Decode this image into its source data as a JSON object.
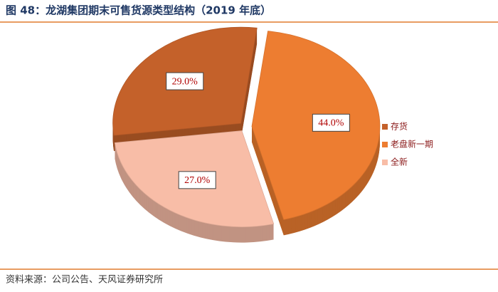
{
  "chart_data": {
    "type": "pie",
    "title": "图 48：龙湖集团期末可售货源类型结构（2019 年底）",
    "source": "资料来源：公司公告、天风证券研究所",
    "series": [
      {
        "name": "存货",
        "color": "#c4612a",
        "values": [
          29.0
        ],
        "value_labels": [
          "29.0%"
        ]
      },
      {
        "name": "老盘新一期",
        "color": "#ed7d31",
        "values": [
          44.0
        ],
        "value_labels": [
          "44.0%"
        ]
      },
      {
        "name": "全新",
        "color": "#f8bda7",
        "values": [
          27.0
        ],
        "value_labels": [
          "27.0%"
        ]
      }
    ],
    "legend": "right"
  }
}
